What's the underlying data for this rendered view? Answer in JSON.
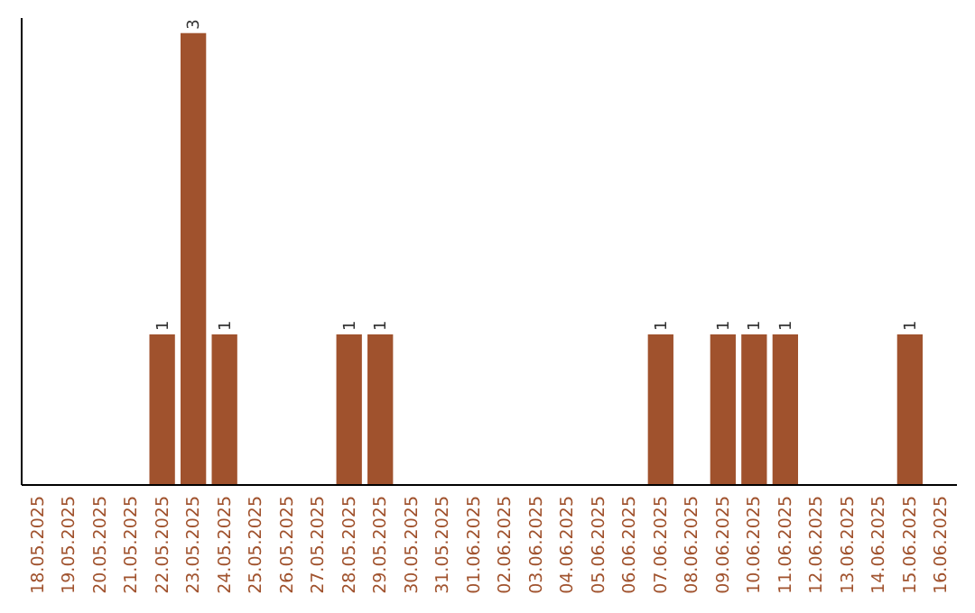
{
  "chart_data": {
    "type": "bar",
    "categories": [
      "18.05.2025",
      "19.05.2025",
      "20.05.2025",
      "21.05.2025",
      "22.05.2025",
      "23.05.2025",
      "24.05.2025",
      "25.05.2025",
      "26.05.2025",
      "27.05.2025",
      "28.05.2025",
      "29.05.2025",
      "30.05.2025",
      "31.05.2025",
      "01.06.2025",
      "02.06.2025",
      "03.06.2025",
      "04.06.2025",
      "05.06.2025",
      "06.06.2025",
      "07.06.2025",
      "08.06.2025",
      "09.06.2025",
      "10.06.2025",
      "11.06.2025",
      "12.06.2025",
      "13.06.2025",
      "14.06.2025",
      "15.06.2025",
      "16.06.2025"
    ],
    "values": [
      0,
      0,
      0,
      0,
      1,
      3,
      1,
      0,
      0,
      0,
      1,
      1,
      0,
      0,
      0,
      0,
      0,
      0,
      0,
      0,
      1,
      0,
      1,
      1,
      1,
      0,
      0,
      0,
      1,
      0
    ],
    "value_labels": [
      null,
      null,
      null,
      null,
      "1",
      "3",
      "1",
      null,
      null,
      null,
      "1",
      "1",
      null,
      null,
      null,
      null,
      null,
      null,
      null,
      null,
      "1",
      null,
      "1",
      "1",
      "1",
      null,
      null,
      null,
      "1",
      null
    ],
    "color": "#a0522d",
    "ylim": [
      0,
      3.1
    ],
    "tick_labels": "x"
  }
}
